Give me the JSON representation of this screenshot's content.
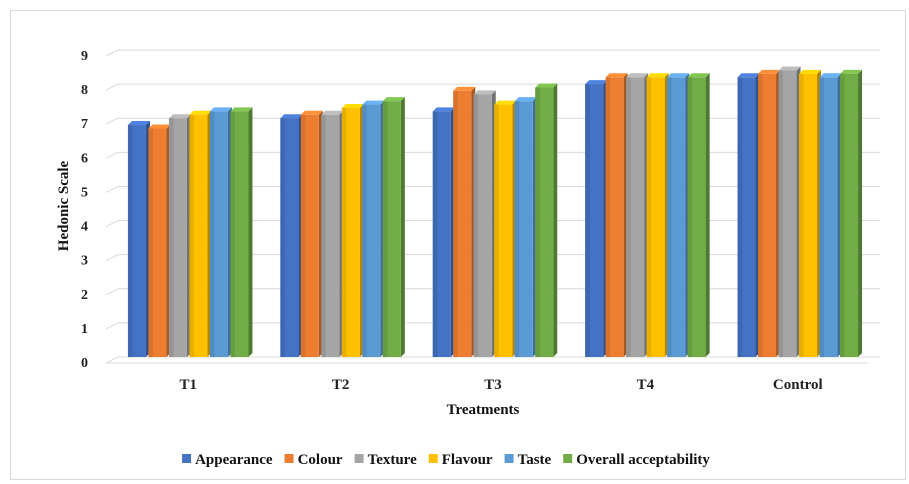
{
  "chart_data": {
    "type": "bar",
    "xlabel": "Treatments",
    "ylabel": "Hedonic Scale",
    "ylim": [
      0,
      9
    ],
    "yticks": [
      "0",
      "1",
      "2",
      "3",
      "4",
      "5",
      "6",
      "7",
      "8",
      "9"
    ],
    "grid": true,
    "legend_position": "bottom",
    "categories": [
      "T1",
      "T2",
      "T3",
      "T4",
      "Control"
    ],
    "series": [
      {
        "name": "Appearance",
        "color": "#4472C4",
        "values": [
          6.8,
          7.0,
          7.2,
          8.0,
          8.2
        ]
      },
      {
        "name": "Colour",
        "color": "#ED7D31",
        "values": [
          6.7,
          7.1,
          7.8,
          8.2,
          8.3
        ]
      },
      {
        "name": "Texture",
        "color": "#A5A5A5",
        "values": [
          7.0,
          7.1,
          7.7,
          8.2,
          8.4
        ]
      },
      {
        "name": "Flavour",
        "color": "#FFC000",
        "values": [
          7.1,
          7.3,
          7.4,
          8.2,
          8.3
        ]
      },
      {
        "name": "Taste",
        "color": "#5B9BD5",
        "values": [
          7.2,
          7.4,
          7.5,
          8.2,
          8.2
        ]
      },
      {
        "name": "Overall acceptability",
        "color": "#70AD47",
        "values": [
          7.2,
          7.5,
          7.9,
          8.2,
          8.3
        ]
      }
    ]
  }
}
